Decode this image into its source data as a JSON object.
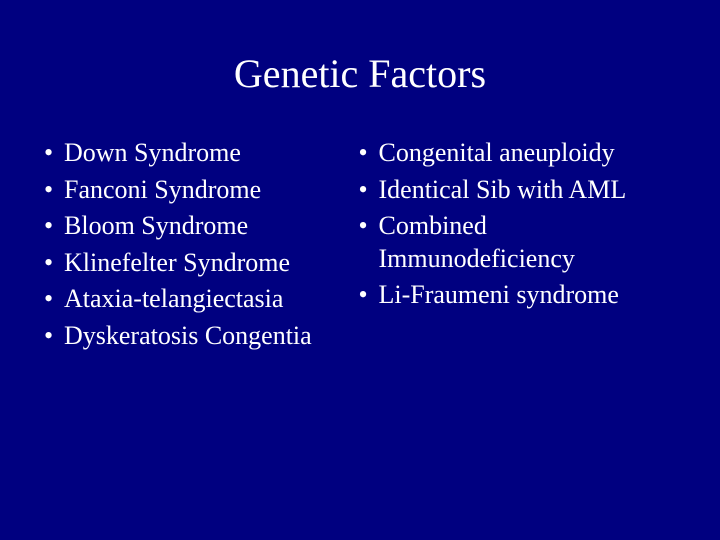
{
  "background_color": "#000080",
  "text_color": "#ffffff",
  "title": {
    "text": "Genetic Factors",
    "fontsize": 40
  },
  "body_fontsize": 26,
  "line_height": 1.25,
  "bullet_char": "•",
  "left_column": [
    "Down Syndrome",
    "Fanconi Syndrome",
    "Bloom Syndrome",
    "Klinefelter Syndrome",
    "Ataxia-telangiectasia",
    "Dyskeratosis Congentia"
  ],
  "right_column": [
    "Congenital aneuploidy",
    "Identical Sib with AML",
    "Combined Immunodeficiency",
    "Li-Fraumeni syndrome"
  ]
}
